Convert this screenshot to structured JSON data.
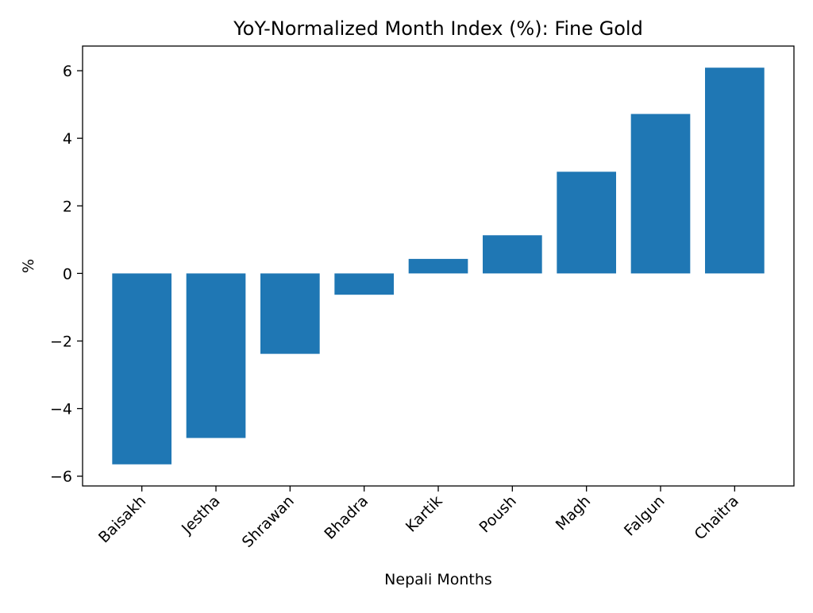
{
  "chart_data": {
    "type": "bar",
    "title": "YoY-Normalized Month Index (%): Fine Gold",
    "xlabel": "Nepali Months",
    "ylabel": "%",
    "categories": [
      "Baisakh",
      "Jestha",
      "Shrawan",
      "Bhadra",
      "Kartik",
      "Poush",
      "Magh",
      "Falgun",
      "Chaitra"
    ],
    "values": [
      -5.65,
      -4.87,
      -2.38,
      -0.63,
      0.43,
      1.13,
      3.01,
      4.72,
      6.09
    ],
    "ylim": [
      -6.29,
      6.73
    ],
    "yticks": [
      -6,
      -4,
      -2,
      0,
      2,
      4,
      6
    ],
    "ytick_labels": [
      "−6",
      "−4",
      "−2",
      "0",
      "2",
      "4",
      "6"
    ],
    "bar_color": "#1f77b4",
    "grid": false,
    "legend": "none"
  }
}
